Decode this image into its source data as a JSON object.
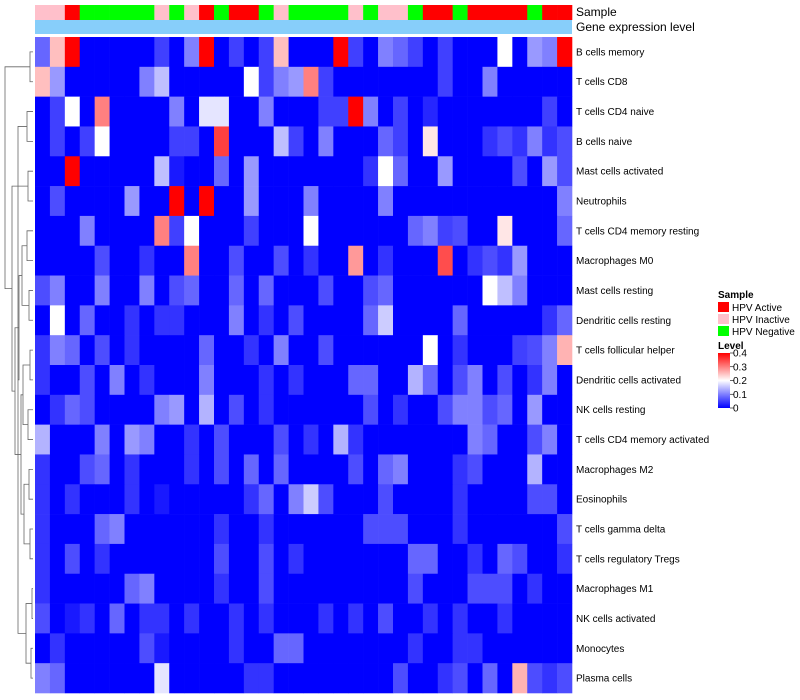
{
  "chart_data": {
    "type": "heatmap",
    "annotation_tracks": [
      "Sample",
      "Gene expression level"
    ],
    "rows": [
      "B cells memory",
      "T cells CD8",
      "T cells CD4 naive",
      "B cells naive",
      "Mast cells activated",
      "Neutrophils",
      "T cells CD4 memory resting",
      "Macrophages M0",
      "Mast cells resting",
      "Dendritic cells resting",
      "T cells follicular helper",
      "Dendritic cells activated",
      "NK cells resting",
      "T cells CD4 memory activated",
      "Macrophages M2",
      "Eosinophils",
      "T cells gamma delta",
      "T cells regulatory  Tregs",
      "Macrophages M1",
      "NK cells activated",
      "Monocytes",
      "Plasma cells"
    ],
    "sample_groups": [
      "Inactive",
      "Inactive",
      "Active",
      "Negative",
      "Negative",
      "Negative",
      "Negative",
      "Negative",
      "Inactive",
      "Negative",
      "Inactive",
      "Active",
      "Negative",
      "Active",
      "Active",
      "Negative",
      "Inactive",
      "Negative",
      "Negative",
      "Negative",
      "Negative",
      "Inactive",
      "Negative",
      "Inactive",
      "Inactive",
      "Negative",
      "Active",
      "Active",
      "Negative",
      "Active",
      "Active",
      "Active",
      "Active",
      "Negative",
      "Active",
      "Active"
    ],
    "gene_expression_level_color": "#87CEFA",
    "sample_legend": {
      "title": "Sample",
      "items": [
        {
          "label": "HPV Active",
          "color": "#FF0000"
        },
        {
          "label": "HPV Inactive",
          "color": "#FFC0CB"
        },
        {
          "label": "HPV Negative",
          "color": "#00FF00"
        }
      ]
    },
    "level_legend": {
      "title": "Level",
      "ticks": [
        "0.4",
        "0.3",
        "0.2",
        "0.1",
        "0"
      ],
      "range": [
        0,
        0.4
      ],
      "colors": {
        "low": "#0000FF",
        "mid": "#FFFFFF",
        "high": "#FF0000"
      }
    },
    "values": [
      [
        0.08,
        0.25,
        0.4,
        0,
        0,
        0,
        0,
        0,
        0.05,
        0,
        0.1,
        0.4,
        0,
        0.05,
        0,
        0.05,
        0.25,
        0,
        0,
        0,
        0.4,
        0.05,
        0,
        0.1,
        0.08,
        0.05,
        0,
        0.05,
        0,
        0,
        0,
        0.2,
        0,
        0.12,
        0.1,
        0.4
      ],
      [
        0.25,
        0.12,
        0,
        0,
        0,
        0,
        0,
        0.1,
        0.15,
        0,
        0,
        0,
        0,
        0,
        0.2,
        0.05,
        0.1,
        0.12,
        0.3,
        0.05,
        0,
        0,
        0,
        0,
        0,
        0,
        0,
        0.05,
        0,
        0,
        0.1,
        0,
        0,
        0,
        0,
        0
      ],
      [
        0,
        0.05,
        0.2,
        0,
        0.3,
        0,
        0,
        0,
        0,
        0.1,
        0,
        0.18,
        0.18,
        0,
        0,
        0.1,
        0,
        0,
        0,
        0.05,
        0.05,
        0.4,
        0.1,
        0,
        0.05,
        0,
        0.03,
        0,
        0,
        0,
        0,
        0,
        0,
        0,
        0.05,
        0
      ],
      [
        0,
        0.05,
        0,
        0.05,
        0.2,
        0,
        0,
        0,
        0,
        0.05,
        0.05,
        0,
        0.35,
        0,
        0,
        0,
        0.15,
        0.05,
        0,
        0.1,
        0,
        0,
        0,
        0.08,
        0.05,
        0,
        0.22,
        0,
        0,
        0,
        0.04,
        0.06,
        0.04,
        0.1,
        0.04,
        0.06
      ],
      [
        0,
        0,
        0.4,
        0,
        0,
        0,
        0,
        0,
        0.15,
        0.02,
        0,
        0,
        0.08,
        0,
        0.12,
        0,
        0,
        0,
        0,
        0,
        0,
        0,
        0.04,
        0.2,
        0.08,
        0,
        0,
        0.12,
        0,
        0,
        0,
        0,
        0.06,
        0,
        0.12,
        0.06
      ],
      [
        0,
        0.06,
        0,
        0,
        0,
        0,
        0.12,
        0,
        0,
        0.4,
        0,
        0.4,
        0,
        0,
        0.12,
        0,
        0,
        0,
        0.1,
        0,
        0,
        0,
        0,
        0.1,
        0,
        0,
        0,
        0,
        0,
        0,
        0,
        0,
        0,
        0,
        0,
        0.1
      ],
      [
        0,
        0,
        0,
        0.1,
        0,
        0,
        0,
        0,
        0.3,
        0.05,
        0.2,
        0,
        0,
        0,
        0.05,
        0,
        0,
        0,
        0.2,
        0,
        0,
        0,
        0,
        0,
        0,
        0.08,
        0.1,
        0.05,
        0.06,
        0,
        0,
        0.22,
        0,
        0,
        0,
        0.08
      ],
      [
        0,
        0,
        0,
        0,
        0.06,
        0,
        0,
        0.04,
        0,
        0,
        0.3,
        0,
        0,
        0.06,
        0,
        0,
        0.06,
        0,
        0.04,
        0,
        0,
        0.28,
        0,
        0.04,
        0,
        0,
        0,
        0.34,
        0,
        0.04,
        0.06,
        0.04,
        0.12,
        0,
        0,
        0
      ],
      [
        0.06,
        0.1,
        0,
        0,
        0.1,
        0,
        0,
        0.1,
        0,
        0.06,
        0.08,
        0,
        0,
        0.08,
        0,
        0.08,
        0,
        0,
        0,
        0.06,
        0,
        0,
        0.06,
        0.08,
        0,
        0,
        0,
        0,
        0,
        0,
        0.2,
        0.15,
        0.1,
        0,
        0,
        0
      ],
      [
        0,
        0.2,
        0,
        0.08,
        0,
        0,
        0.04,
        0,
        0.04,
        0.04,
        0,
        0,
        0,
        0.1,
        0,
        0.04,
        0,
        0.06,
        0,
        0,
        0,
        0,
        0.08,
        0.16,
        0,
        0,
        0,
        0,
        0.08,
        0,
        0,
        0,
        0,
        0,
        0.04,
        0.08
      ],
      [
        0.04,
        0.1,
        0.08,
        0,
        0.06,
        0,
        0.04,
        0,
        0,
        0,
        0,
        0.08,
        0,
        0,
        0.04,
        0,
        0.1,
        0,
        0,
        0.06,
        0,
        0,
        0,
        0,
        0,
        0,
        0.2,
        0,
        0.04,
        0,
        0,
        0,
        0.05,
        0.06,
        0.1,
        0.26
      ],
      [
        0.04,
        0,
        0,
        0.06,
        0,
        0.1,
        0,
        0.04,
        0,
        0,
        0,
        0.1,
        0,
        0,
        0,
        0.04,
        0,
        0.04,
        0,
        0,
        0,
        0.08,
        0.08,
        0,
        0,
        0.14,
        0.08,
        0,
        0.06,
        0.1,
        0,
        0.06,
        0,
        0.04,
        0.1,
        0
      ],
      [
        0,
        0.04,
        0.08,
        0.06,
        0,
        0,
        0,
        0,
        0.1,
        0.12,
        0,
        0.14,
        0,
        0.06,
        0,
        0.04,
        0,
        0,
        0,
        0,
        0,
        0,
        0.06,
        0,
        0.04,
        0,
        0,
        0.06,
        0.1,
        0.1,
        0.06,
        0.08,
        0,
        0.12,
        0,
        0
      ],
      [
        0.14,
        0,
        0,
        0,
        0.1,
        0,
        0.12,
        0.1,
        0,
        0,
        0.04,
        0,
        0.06,
        0,
        0,
        0,
        0.06,
        0,
        0.04,
        0,
        0.14,
        0.04,
        0,
        0,
        0,
        0,
        0,
        0,
        0,
        0.1,
        0.08,
        0,
        0,
        0.06,
        0.1,
        0
      ],
      [
        0.04,
        0,
        0,
        0.06,
        0.08,
        0,
        0.04,
        0,
        0,
        0,
        0.04,
        0,
        0.06,
        0,
        0.08,
        0,
        0.08,
        0,
        0,
        0,
        0,
        0.06,
        0,
        0.08,
        0.1,
        0,
        0,
        0,
        0.04,
        0.06,
        0,
        0,
        0,
        0.14,
        0,
        0
      ],
      [
        0.04,
        0,
        0.04,
        0,
        0,
        0,
        0.04,
        0,
        0.02,
        0,
        0,
        0,
        0,
        0,
        0.04,
        0.08,
        0,
        0.1,
        0.16,
        0.06,
        0,
        0,
        0,
        0.06,
        0,
        0,
        0,
        0,
        0.04,
        0,
        0,
        0,
        0,
        0.06,
        0.06,
        0
      ],
      [
        0.04,
        0,
        0,
        0,
        0.08,
        0.1,
        0,
        0,
        0,
        0,
        0,
        0,
        0.04,
        0,
        0,
        0.04,
        0,
        0,
        0,
        0,
        0,
        0,
        0.06,
        0.06,
        0.06,
        0,
        0,
        0,
        0.04,
        0,
        0,
        0,
        0,
        0,
        0,
        0.06
      ],
      [
        0.04,
        0,
        0.06,
        0,
        0.04,
        0,
        0,
        0,
        0,
        0,
        0,
        0,
        0.06,
        0,
        0,
        0.06,
        0,
        0.04,
        0,
        0,
        0,
        0,
        0,
        0,
        0,
        0.08,
        0.08,
        0,
        0,
        0.04,
        0,
        0.08,
        0.06,
        0,
        0,
        0.04
      ],
      [
        0.04,
        0,
        0,
        0,
        0,
        0,
        0.08,
        0.1,
        0,
        0,
        0,
        0,
        0.04,
        0,
        0,
        0.06,
        0,
        0,
        0,
        0,
        0,
        0,
        0,
        0,
        0,
        0.06,
        0,
        0,
        0,
        0.06,
        0.06,
        0.06,
        0,
        0.04,
        0,
        0
      ],
      [
        0.06,
        0,
        0.02,
        0.04,
        0,
        0.08,
        0,
        0.04,
        0.04,
        0,
        0.04,
        0,
        0,
        0.04,
        0,
        0.04,
        0,
        0,
        0,
        0.04,
        0,
        0.04,
        0,
        0.06,
        0,
        0,
        0.04,
        0,
        0.04,
        0,
        0,
        0.04,
        0,
        0,
        0,
        0
      ],
      [
        0,
        0.04,
        0,
        0,
        0,
        0,
        0,
        0.06,
        0.02,
        0,
        0,
        0,
        0,
        0.04,
        0,
        0,
        0.08,
        0.08,
        0,
        0,
        0,
        0,
        0,
        0,
        0,
        0.04,
        0,
        0,
        0.04,
        0.04,
        0,
        0,
        0,
        0,
        0,
        0
      ],
      [
        0.1,
        0.08,
        0,
        0,
        0,
        0,
        0,
        0,
        0.18,
        0,
        0,
        0,
        0,
        0,
        0.04,
        0.04,
        0,
        0,
        0,
        0,
        0,
        0,
        0,
        0,
        0.06,
        0,
        0,
        0.04,
        0.06,
        0,
        0.08,
        0,
        0.26,
        0.06,
        0.04,
        0.06
      ]
    ]
  }
}
